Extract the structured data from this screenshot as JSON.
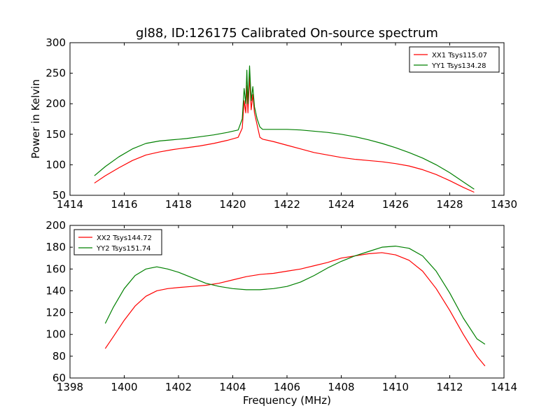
{
  "chart_data": [
    {
      "type": "line",
      "title": "gl88, ID:126175 Calibrated On-source spectrum",
      "xlabel": "",
      "ylabel": "Power in Kelvin",
      "xlim": [
        1414,
        1430
      ],
      "ylim": [
        50,
        300
      ],
      "xticks": [
        1414,
        1416,
        1418,
        1420,
        1422,
        1424,
        1426,
        1428,
        1430
      ],
      "yticks": [
        50,
        100,
        150,
        200,
        250,
        300
      ],
      "grid": false,
      "legend_position": "top-right",
      "series": [
        {
          "name": "XX1 Tsys115.07",
          "color": "#ff0000",
          "x": [
            1414.9,
            1415.3,
            1415.8,
            1416.3,
            1416.8,
            1417.3,
            1417.8,
            1418.3,
            1418.8,
            1419.3,
            1419.8,
            1420.2,
            1420.35,
            1420.42,
            1420.48,
            1420.52,
            1420.56,
            1420.62,
            1420.68,
            1420.74,
            1420.8,
            1420.9,
            1421.0,
            1421.1,
            1421.5,
            1422.0,
            1422.5,
            1423.0,
            1423.5,
            1424.0,
            1424.5,
            1425.0,
            1425.5,
            1426.0,
            1426.5,
            1427.0,
            1427.5,
            1428.0,
            1428.5,
            1428.9
          ],
          "values": [
            70,
            82,
            95,
            107,
            116,
            121,
            125,
            128,
            131,
            135,
            140,
            145,
            160,
            205,
            185,
            230,
            185,
            245,
            190,
            215,
            185,
            165,
            145,
            142,
            138,
            132,
            126,
            120,
            116,
            112,
            109,
            107,
            105,
            102,
            98,
            92,
            84,
            74,
            63,
            55
          ]
        },
        {
          "name": "YY1 Tsys134.28",
          "color": "#008000",
          "x": [
            1414.9,
            1415.3,
            1415.8,
            1416.3,
            1416.8,
            1417.3,
            1417.8,
            1418.3,
            1418.8,
            1419.3,
            1419.8,
            1420.2,
            1420.35,
            1420.42,
            1420.48,
            1420.52,
            1420.56,
            1420.62,
            1420.68,
            1420.74,
            1420.8,
            1420.9,
            1421.0,
            1421.1,
            1421.5,
            1422.0,
            1422.5,
            1423.0,
            1423.5,
            1424.0,
            1424.5,
            1425.0,
            1425.5,
            1426.0,
            1426.5,
            1427.0,
            1427.5,
            1428.0,
            1428.5,
            1428.9
          ],
          "values": [
            82,
            97,
            113,
            126,
            135,
            139,
            141,
            143,
            146,
            149,
            153,
            157,
            175,
            225,
            200,
            255,
            200,
            262,
            205,
            228,
            195,
            175,
            162,
            158,
            158,
            158,
            157,
            155,
            153,
            150,
            146,
            141,
            135,
            128,
            120,
            111,
            100,
            87,
            72,
            60
          ]
        }
      ]
    },
    {
      "type": "line",
      "title": "",
      "xlabel": "Frequency (MHz)",
      "ylabel": "",
      "xlim": [
        1398,
        1414
      ],
      "ylim": [
        60,
        200
      ],
      "xticks": [
        1398,
        1400,
        1402,
        1404,
        1406,
        1408,
        1410,
        1412,
        1414
      ],
      "yticks": [
        60,
        80,
        100,
        120,
        140,
        160,
        180,
        200
      ],
      "grid": false,
      "legend_position": "top-left",
      "series": [
        {
          "name": "XX2 Tsys144.72",
          "color": "#ff0000",
          "x": [
            1399.3,
            1399.6,
            1400.0,
            1400.4,
            1400.8,
            1401.2,
            1401.6,
            1402.0,
            1402.5,
            1403.0,
            1403.5,
            1404.0,
            1404.5,
            1405.0,
            1405.5,
            1406.0,
            1406.5,
            1407.0,
            1407.5,
            1408.0,
            1408.5,
            1409.0,
            1409.5,
            1410.0,
            1410.5,
            1411.0,
            1411.5,
            1412.0,
            1412.5,
            1413.0,
            1413.3
          ],
          "values": [
            87,
            98,
            113,
            126,
            135,
            140,
            142,
            143,
            144,
            145,
            147,
            150,
            153,
            155,
            156,
            158,
            160,
            163,
            166,
            170,
            172,
            174,
            175,
            173,
            168,
            158,
            142,
            122,
            100,
            80,
            71
          ]
        },
        {
          "name": "YY2 Tsys151.74",
          "color": "#008000",
          "x": [
            1399.3,
            1399.6,
            1400.0,
            1400.4,
            1400.8,
            1401.2,
            1401.6,
            1402.0,
            1402.5,
            1403.0,
            1403.5,
            1404.0,
            1404.5,
            1405.0,
            1405.5,
            1406.0,
            1406.5,
            1407.0,
            1407.5,
            1408.0,
            1408.5,
            1409.0,
            1409.5,
            1410.0,
            1410.5,
            1411.0,
            1411.5,
            1412.0,
            1412.5,
            1413.0,
            1413.3
          ],
          "values": [
            110,
            125,
            142,
            154,
            160,
            162,
            160,
            157,
            152,
            147,
            144,
            142,
            141,
            141,
            142,
            144,
            148,
            154,
            161,
            167,
            172,
            176,
            180,
            181,
            179,
            172,
            158,
            138,
            115,
            96,
            91
          ]
        }
      ]
    }
  ]
}
